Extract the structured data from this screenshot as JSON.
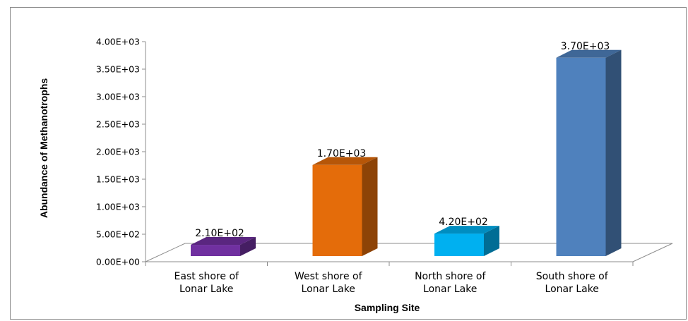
{
  "chart_data": {
    "type": "bar",
    "three_d": true,
    "categories": [
      [
        "East shore of",
        "Lonar Lake"
      ],
      [
        "West shore of",
        "Lonar Lake"
      ],
      [
        "North shore of",
        "Lonar Lake"
      ],
      [
        "South shore of",
        "Lonar Lake"
      ]
    ],
    "values": [
      210,
      1700,
      420,
      3700
    ],
    "data_labels": [
      "2.10E+02",
      "1.70E+03",
      "4.20E+02",
      "3.70E+03"
    ],
    "colors": [
      "#7030a0",
      "#e46c0a",
      "#00b0f0",
      "#4f81bd"
    ],
    "xlabel": "Sampling Site",
    "ylabel": "Abundance of Methanotrophs",
    "ylim": [
      0,
      4000
    ],
    "yticks": [
      0,
      500,
      1000,
      1500,
      2000,
      2500,
      3000,
      3500,
      4000
    ],
    "ytick_labels": [
      "0.00E+00",
      "5.00E+02",
      "1.00E+03",
      "1.50E+03",
      "2.00E+03",
      "2.50E+03",
      "3.00E+03",
      "3.50E+03",
      "4.00E+03"
    ],
    "grid": false,
    "legend": "none"
  }
}
